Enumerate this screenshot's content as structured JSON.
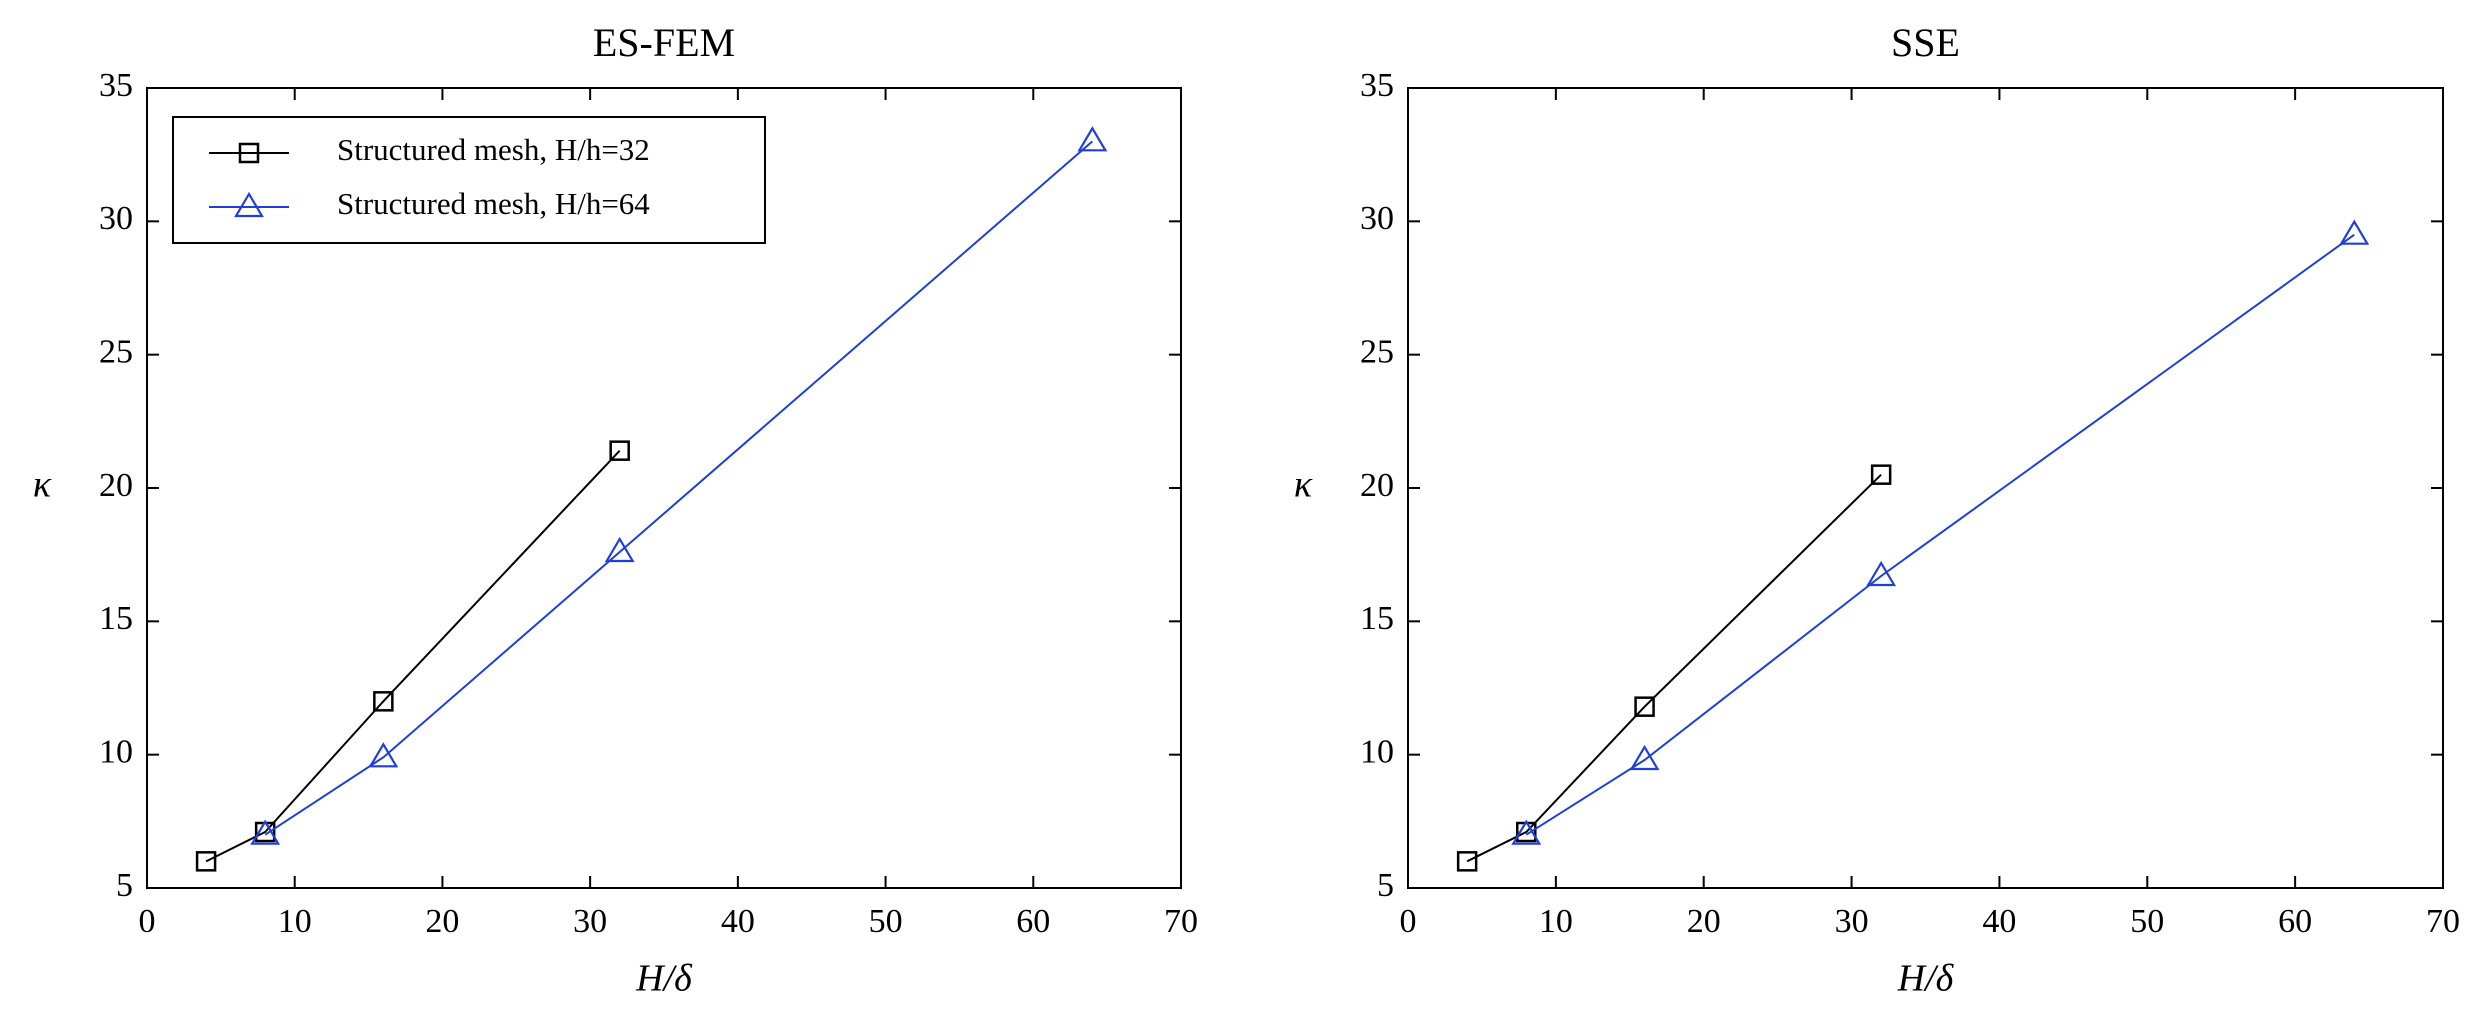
{
  "chart_data": [
    {
      "type": "line",
      "title": "ES-FEM",
      "xlabel": "H/δ",
      "ylabel": "κ",
      "xlim": [
        0,
        70
      ],
      "xticks": [
        0,
        10,
        20,
        30,
        40,
        50,
        60,
        70
      ],
      "ylim": [
        5,
        35
      ],
      "yticks": [
        5,
        10,
        15,
        20,
        25,
        30,
        35
      ],
      "legend": "upper left",
      "series": [
        {
          "name": "Structured mesh, H/h=32",
          "color": "#000000",
          "marker": "square",
          "x": [
            4,
            8,
            16,
            32
          ],
          "values": [
            6.0,
            7.1,
            12.0,
            21.4
          ]
        },
        {
          "name": "Structured mesh, H/h=64",
          "color": "#1f3fd8",
          "marker": "triangle",
          "x": [
            8,
            16,
            32,
            64
          ],
          "values": [
            7.0,
            9.9,
            17.6,
            33.0
          ]
        }
      ]
    },
    {
      "type": "line",
      "title": "SSE",
      "xlabel": "H/δ",
      "ylabel": "κ",
      "xlim": [
        0,
        70
      ],
      "xticks": [
        0,
        10,
        20,
        30,
        40,
        50,
        60,
        70
      ],
      "ylim": [
        5,
        35
      ],
      "yticks": [
        5,
        10,
        15,
        20,
        25,
        30,
        35
      ],
      "series": [
        {
          "color": "#000000",
          "marker": "square",
          "x": [
            4,
            8,
            16,
            32
          ],
          "values": [
            6.0,
            7.1,
            11.8,
            20.5
          ]
        },
        {
          "color": "#1f3fd8",
          "marker": "triangle",
          "x": [
            8,
            16,
            32,
            64
          ],
          "values": [
            7.0,
            9.8,
            16.7,
            29.5
          ]
        }
      ]
    }
  ]
}
